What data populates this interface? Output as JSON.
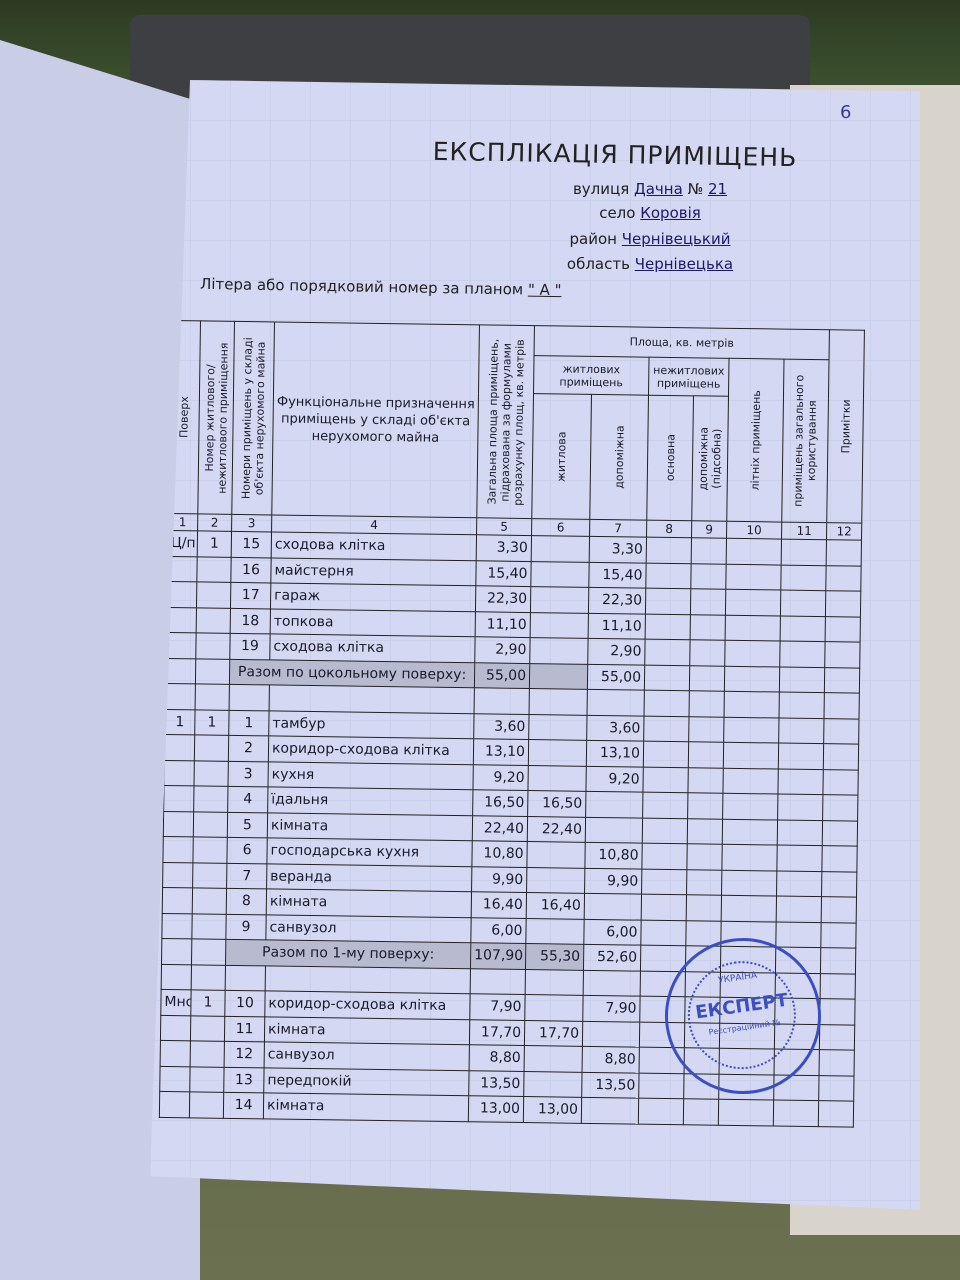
{
  "page_number": "6",
  "title": "ЕКСПЛІКАЦІЯ ПРИМІЩЕНЬ",
  "address": {
    "street_label": "вулиця",
    "street": "Дачна",
    "no_label": "№",
    "no": "21",
    "village_label": "село",
    "village": "Коровія",
    "district_label": "район",
    "district": "Чернівецький",
    "region_label": "область",
    "region": "Чернівецька"
  },
  "litera_label": "Літера або порядковий номер за планом",
  "litera": "\" А \"",
  "headers": {
    "floor": "Поверх",
    "apt_no": "Номер житлового/ нежитлового приміщення",
    "room_no": "Номери приміщень у складі об'єкта нерухомого майна",
    "purpose": "Функціональне призначення приміщень у складі об'єкта нерухомого майна",
    "total_area": "Загальна площа приміщень, підрахована за формулами розрахунку площ, кв. метрів",
    "area_group": "Площа, кв. метрів",
    "residential": "житлових приміщень",
    "nonresidential": "нежитлових приміщень",
    "living": "житлова",
    "auxiliary": "допоміжна",
    "main": "основна",
    "aux_utility": "допоміжна (підсобна)",
    "summer": "літніх приміщень",
    "common": "приміщень загального користування",
    "notes": "Примітки",
    "col_numbers": [
      "1",
      "2",
      "3",
      "4",
      "5",
      "6",
      "7",
      "8",
      "9",
      "10",
      "11",
      "12"
    ]
  },
  "rows": [
    {
      "floor": "Ц/п",
      "apt": "1",
      "room": "15",
      "name": "сходова клітка",
      "total": "3,30",
      "living": "",
      "aux": "3,30"
    },
    {
      "floor": "",
      "apt": "",
      "room": "16",
      "name": "майстерня",
      "total": "15,40",
      "living": "",
      "aux": "15,40"
    },
    {
      "floor": "",
      "apt": "",
      "room": "17",
      "name": "гараж",
      "total": "22,30",
      "living": "",
      "aux": "22,30"
    },
    {
      "floor": "",
      "apt": "",
      "room": "18",
      "name": "топкова",
      "total": "11,10",
      "living": "",
      "aux": "11,10"
    },
    {
      "floor": "",
      "apt": "",
      "room": "19",
      "name": "сходова клітка",
      "total": "2,90",
      "living": "",
      "aux": "2,90"
    },
    {
      "type": "total",
      "name": "Разом по цокольному поверху:",
      "total": "55,00",
      "living": "",
      "aux": "55,00"
    },
    {
      "type": "empty"
    },
    {
      "floor": "1",
      "apt": "1",
      "room": "1",
      "name": "тамбур",
      "total": "3,60",
      "living": "",
      "aux": "3,60"
    },
    {
      "floor": "",
      "apt": "",
      "room": "2",
      "name": "коридор-сходова клітка",
      "total": "13,10",
      "living": "",
      "aux": "13,10"
    },
    {
      "floor": "",
      "apt": "",
      "room": "3",
      "name": "кухня",
      "total": "9,20",
      "living": "",
      "aux": "9,20"
    },
    {
      "floor": "",
      "apt": "",
      "room": "4",
      "name": "їдальня",
      "total": "16,50",
      "living": "16,50",
      "aux": ""
    },
    {
      "floor": "",
      "apt": "",
      "room": "5",
      "name": "кімната",
      "total": "22,40",
      "living": "22,40",
      "aux": ""
    },
    {
      "floor": "",
      "apt": "",
      "room": "6",
      "name": "господарська кухня",
      "total": "10,80",
      "living": "",
      "aux": "10,80"
    },
    {
      "floor": "",
      "apt": "",
      "room": "7",
      "name": "веранда",
      "total": "9,90",
      "living": "",
      "aux": "9,90"
    },
    {
      "floor": "",
      "apt": "",
      "room": "8",
      "name": "кімната",
      "total": "16,40",
      "living": "16,40",
      "aux": ""
    },
    {
      "floor": "",
      "apt": "",
      "room": "9",
      "name": "санвузол",
      "total": "6,00",
      "living": "",
      "aux": "6,00"
    },
    {
      "type": "total",
      "name": "Разом по 1-му поверху:",
      "total": "107,90",
      "living": "55,30",
      "aux": "52,60"
    },
    {
      "type": "empty"
    },
    {
      "floor": "Мнс",
      "apt": "1",
      "room": "10",
      "name": "коридор-сходова клітка",
      "total": "7,90",
      "living": "",
      "aux": "7,90"
    },
    {
      "floor": "",
      "apt": "",
      "room": "11",
      "name": "кімната",
      "total": "17,70",
      "living": "17,70",
      "aux": ""
    },
    {
      "floor": "",
      "apt": "",
      "room": "12",
      "name": "санвузол",
      "total": "8,80",
      "living": "",
      "aux": "8,80"
    },
    {
      "floor": "",
      "apt": "",
      "room": "13",
      "name": "передпокій",
      "total": "13,50",
      "living": "",
      "aux": "13,50"
    },
    {
      "floor": "",
      "apt": "",
      "room": "14",
      "name": "кімната",
      "total": "13,00",
      "living": "13,00",
      "aux": ""
    }
  ],
  "stamp": {
    "top": "УКРАЇНА",
    "center": "ЕКСПЕРТ",
    "bottom": "Реєстраційний №"
  }
}
